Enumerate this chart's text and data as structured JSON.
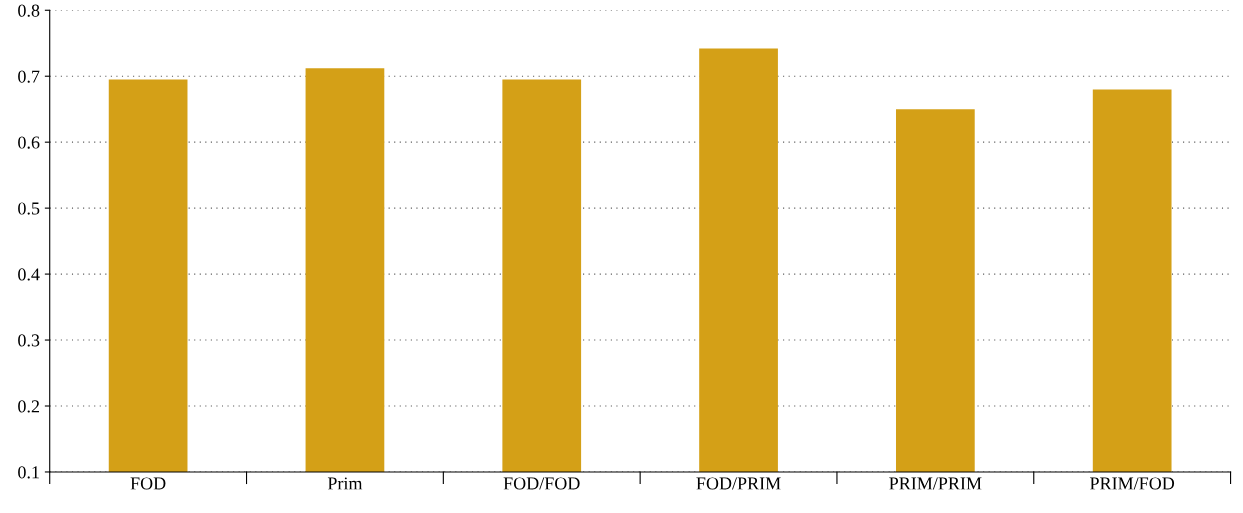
{
  "chart_data": {
    "type": "bar",
    "categories": [
      "FOD",
      "Prim",
      "FOD/FOD",
      "FOD/PRIM",
      "PRIM/PRIM",
      "PRIM/FOD"
    ],
    "values": [
      0.695,
      0.712,
      0.695,
      0.742,
      0.65,
      0.68
    ],
    "color": "#d4a017",
    "ylim": [
      0.1,
      0.8
    ],
    "yticks": [
      0.1,
      0.2,
      0.3,
      0.4,
      0.5,
      0.6,
      0.7,
      0.8
    ],
    "grid": "y"
  }
}
